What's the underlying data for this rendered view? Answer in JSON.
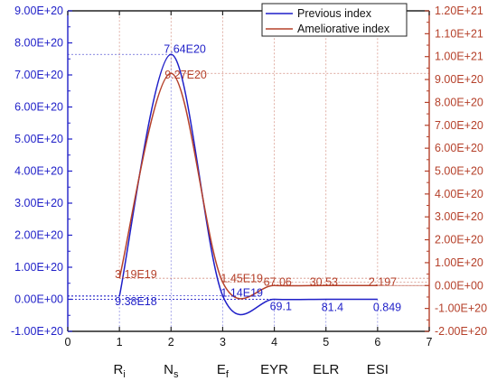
{
  "chart_data": {
    "type": "line",
    "x": [
      1,
      2,
      3,
      4,
      5,
      6
    ],
    "xlim": [
      0,
      7
    ],
    "x_ticks": [
      "0",
      "1",
      "2",
      "3",
      "4",
      "5",
      "6",
      "7"
    ],
    "categories": [
      {
        "main": "R",
        "sub": "i"
      },
      {
        "main": "N",
        "sub": "s"
      },
      {
        "main": "E",
        "sub": "f"
      },
      {
        "main": "EYR",
        "sub": ""
      },
      {
        "main": "ELR",
        "sub": ""
      },
      {
        "main": "ESI",
        "sub": ""
      }
    ],
    "left_axis": {
      "ylim": [
        -1e+20,
        9e+20
      ],
      "ticks": [
        "-1.00E+20",
        "0.00E+00",
        "1.00E+20",
        "2.00E+20",
        "3.00E+20",
        "4.00E+20",
        "5.00E+20",
        "6.00E+20",
        "7.00E+20",
        "8.00E+20",
        "9.00E+20"
      ],
      "color": "#1f1fc8"
    },
    "right_axis": {
      "ylim": [
        -2e+20,
        1.2e+21
      ],
      "ticks": [
        "-2.00E+20",
        "-1.00E+20",
        "0.00E+00",
        "1.00E+20",
        "2.00E+20",
        "3.00E+20",
        "4.00E+20",
        "5.00E+20",
        "6.00E+20",
        "7.00E+20",
        "8.00E+20",
        "9.00E+20",
        "1.00E+21",
        "1.10E+21",
        "1.20E+21"
      ],
      "color": "#b5402a"
    },
    "series": [
      {
        "name": "Previous index",
        "axis": "left",
        "color": "#1f1fc8",
        "values": [
          9.38e+18,
          7.64e+20,
          1.14e+19,
          69.1,
          81.4,
          0.849
        ],
        "labels": [
          "9.38E18",
          "7.64E20",
          "1.14E19",
          "69.1",
          "81.4",
          "0.849"
        ]
      },
      {
        "name": "Ameliorative index",
        "axis": "right",
        "color": "#b5402a",
        "values": [
          3.19e+19,
          9.27e+20,
          1.45e+19,
          67.06,
          30.53,
          2.197
        ],
        "labels": [
          "3.19E19",
          "9.27E20",
          "1.45E19",
          "67.06",
          "30.53",
          "2.197"
        ]
      }
    ],
    "legend_position": "top-right",
    "grid": false
  }
}
